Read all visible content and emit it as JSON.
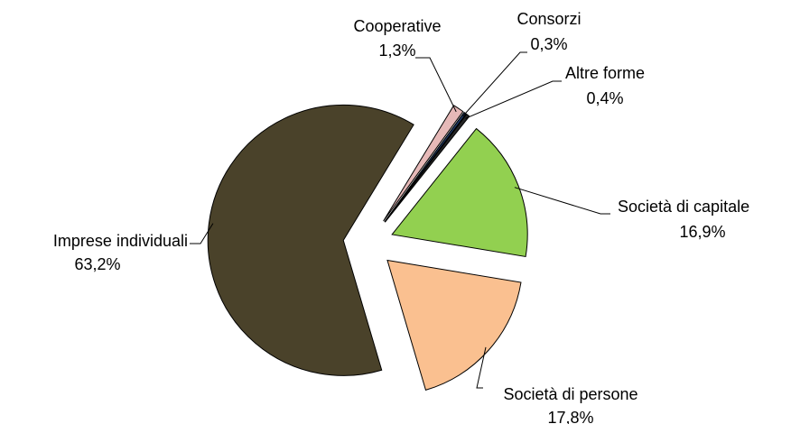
{
  "chart_data": {
    "type": "pie",
    "categories": [
      "Società di capitale",
      "Società di persone",
      "Imprese individuali",
      "Cooperative",
      "Consorzi",
      "Altre forme"
    ],
    "values": [
      16.9,
      17.8,
      63.2,
      1.3,
      0.3,
      0.4
    ],
    "value_labels": [
      "16,9%",
      "17,8%",
      "63,2%",
      "1,3%",
      "0,3%",
      "0,4%"
    ],
    "colors": [
      "#92d050",
      "#fac090",
      "#4a422a",
      "#e6b9b8",
      "#1f3864",
      "#262626"
    ]
  }
}
